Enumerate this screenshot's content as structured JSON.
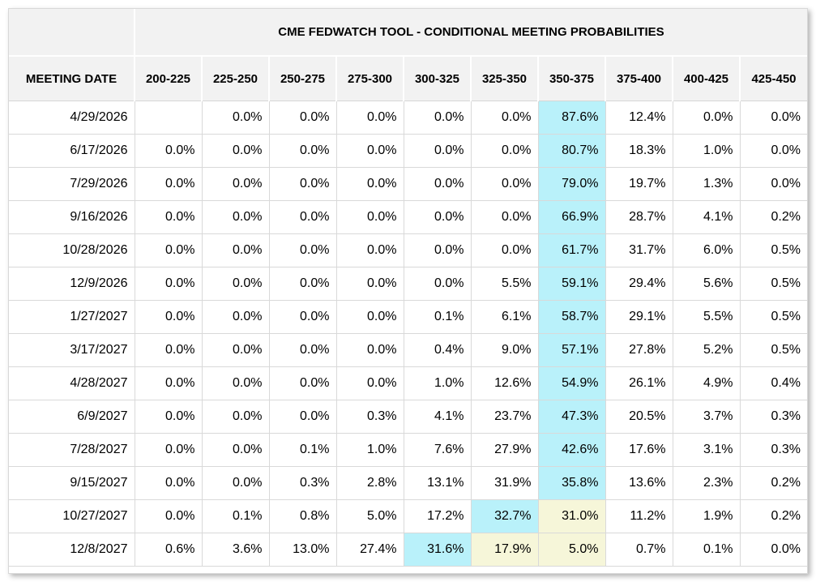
{
  "chart_data": {
    "type": "table",
    "title": "CME FEDWATCH TOOL - CONDITIONAL MEETING PROBABILITIES",
    "columns": [
      "MEETING DATE",
      "200-225",
      "225-250",
      "250-275",
      "275-300",
      "300-325",
      "325-350",
      "350-375",
      "375-400",
      "400-425",
      "425-450"
    ],
    "highlight_colors": {
      "cyan": "#b9f1fa",
      "yellow": "#f6f6d9"
    },
    "rows": [
      {
        "date": "4/29/2026",
        "values": [
          "",
          "0.0%",
          "0.0%",
          "0.0%",
          "0.0%",
          "0.0%",
          "87.6%",
          "12.4%",
          "0.0%",
          "0.0%"
        ],
        "highlights": {
          "6": "cyan"
        }
      },
      {
        "date": "6/17/2026",
        "values": [
          "0.0%",
          "0.0%",
          "0.0%",
          "0.0%",
          "0.0%",
          "0.0%",
          "80.7%",
          "18.3%",
          "1.0%",
          "0.0%"
        ],
        "highlights": {
          "6": "cyan"
        }
      },
      {
        "date": "7/29/2026",
        "values": [
          "0.0%",
          "0.0%",
          "0.0%",
          "0.0%",
          "0.0%",
          "0.0%",
          "79.0%",
          "19.7%",
          "1.3%",
          "0.0%"
        ],
        "highlights": {
          "6": "cyan"
        }
      },
      {
        "date": "9/16/2026",
        "values": [
          "0.0%",
          "0.0%",
          "0.0%",
          "0.0%",
          "0.0%",
          "0.0%",
          "66.9%",
          "28.7%",
          "4.1%",
          "0.2%"
        ],
        "highlights": {
          "6": "cyan"
        }
      },
      {
        "date": "10/28/2026",
        "values": [
          "0.0%",
          "0.0%",
          "0.0%",
          "0.0%",
          "0.0%",
          "0.0%",
          "61.7%",
          "31.7%",
          "6.0%",
          "0.5%"
        ],
        "highlights": {
          "6": "cyan"
        }
      },
      {
        "date": "12/9/2026",
        "values": [
          "0.0%",
          "0.0%",
          "0.0%",
          "0.0%",
          "0.0%",
          "5.5%",
          "59.1%",
          "29.4%",
          "5.6%",
          "0.5%"
        ],
        "highlights": {
          "6": "cyan"
        }
      },
      {
        "date": "1/27/2027",
        "values": [
          "0.0%",
          "0.0%",
          "0.0%",
          "0.0%",
          "0.1%",
          "6.1%",
          "58.7%",
          "29.1%",
          "5.5%",
          "0.5%"
        ],
        "highlights": {
          "6": "cyan"
        }
      },
      {
        "date": "3/17/2027",
        "values": [
          "0.0%",
          "0.0%",
          "0.0%",
          "0.0%",
          "0.4%",
          "9.0%",
          "57.1%",
          "27.8%",
          "5.2%",
          "0.5%"
        ],
        "highlights": {
          "6": "cyan"
        }
      },
      {
        "date": "4/28/2027",
        "values": [
          "0.0%",
          "0.0%",
          "0.0%",
          "0.0%",
          "1.0%",
          "12.6%",
          "54.9%",
          "26.1%",
          "4.9%",
          "0.4%"
        ],
        "highlights": {
          "6": "cyan"
        }
      },
      {
        "date": "6/9/2027",
        "values": [
          "0.0%",
          "0.0%",
          "0.0%",
          "0.3%",
          "4.1%",
          "23.7%",
          "47.3%",
          "20.5%",
          "3.7%",
          "0.3%"
        ],
        "highlights": {
          "6": "cyan"
        }
      },
      {
        "date": "7/28/2027",
        "values": [
          "0.0%",
          "0.0%",
          "0.1%",
          "1.0%",
          "7.6%",
          "27.9%",
          "42.6%",
          "17.6%",
          "3.1%",
          "0.3%"
        ],
        "highlights": {
          "6": "cyan"
        }
      },
      {
        "date": "9/15/2027",
        "values": [
          "0.0%",
          "0.0%",
          "0.3%",
          "2.8%",
          "13.1%",
          "31.9%",
          "35.8%",
          "13.6%",
          "2.3%",
          "0.2%"
        ],
        "highlights": {
          "6": "cyan"
        }
      },
      {
        "date": "10/27/2027",
        "values": [
          "0.0%",
          "0.1%",
          "0.8%",
          "5.0%",
          "17.2%",
          "32.7%",
          "31.0%",
          "11.2%",
          "1.9%",
          "0.2%"
        ],
        "highlights": {
          "5": "cyan",
          "6": "yellow"
        }
      },
      {
        "date": "12/8/2027",
        "values": [
          "0.6%",
          "3.6%",
          "13.0%",
          "27.4%",
          "31.6%",
          "17.9%",
          "5.0%",
          "0.7%",
          "0.1%",
          "0.0%"
        ],
        "highlights": {
          "4": "cyan",
          "5": "yellow",
          "6": "yellow"
        }
      }
    ]
  }
}
